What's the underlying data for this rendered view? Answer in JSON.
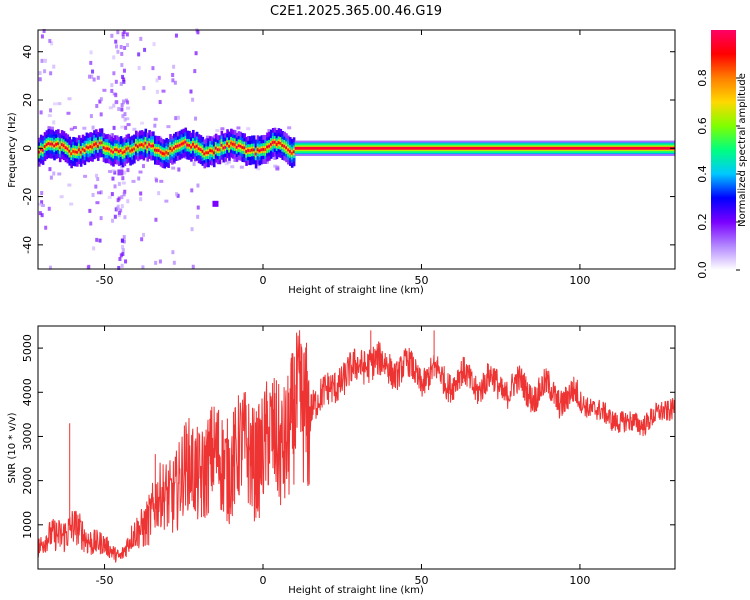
{
  "title": "C2E1.2025.365.00.46.G19",
  "chart_data": [
    {
      "type": "heatmap",
      "xlabel": "Height of straight line (km)",
      "ylabel": "Frequency (Hz)",
      "xlim": [
        -71,
        130
      ],
      "ylim": [
        -50,
        49
      ],
      "xticks": [
        -50,
        0,
        50,
        100
      ],
      "yticks": [
        -40,
        -20,
        0,
        20,
        40
      ],
      "colorbar": {
        "label": "Normalized spectral amplitude",
        "range": [
          0.0,
          1.0
        ],
        "ticks": [
          0.0,
          0.2,
          0.4,
          0.6,
          0.8
        ],
        "colors": [
          "#ffffff",
          "#b388ff",
          "#7a00ff",
          "#0000ff",
          "#00c8ff",
          "#00ff7f",
          "#7fff00",
          "#ffd800",
          "#ff7f00",
          "#ff0000",
          "#ff0066"
        ]
      },
      "ridge": {
        "center_frequency_hz": 0,
        "stable_from_km": 10,
        "band_halfwidth_hz": 2
      },
      "features": [
        {
          "x_km": -15,
          "y_hz": -23,
          "amplitude": 0.2
        },
        {
          "x_km": -45,
          "y_hz": -10,
          "amplitude": 0.15
        }
      ]
    },
    {
      "type": "line",
      "xlabel": "Height of straight line (km)",
      "ylabel": "SNR (10 * v/v)",
      "xlim": [
        -71,
        130
      ],
      "ylim": [
        0,
        5500
      ],
      "xticks": [
        -50,
        0,
        50,
        100
      ],
      "yticks": [
        1000,
        2000,
        3000,
        4000,
        5000
      ],
      "color": "#ee3333",
      "envelope": [
        {
          "x": -71,
          "y": 500
        },
        {
          "x": -65,
          "y": 800
        },
        {
          "x": -60,
          "y": 900
        },
        {
          "x": -55,
          "y": 700
        },
        {
          "x": -50,
          "y": 500
        },
        {
          "x": -45,
          "y": 300
        },
        {
          "x": -40,
          "y": 800
        },
        {
          "x": -35,
          "y": 1300
        },
        {
          "x": -30,
          "y": 1700
        },
        {
          "x": -25,
          "y": 2100
        },
        {
          "x": -20,
          "y": 2300
        },
        {
          "x": -15,
          "y": 2400
        },
        {
          "x": -10,
          "y": 2500
        },
        {
          "x": -5,
          "y": 2600
        },
        {
          "x": 0,
          "y": 2700
        },
        {
          "x": 5,
          "y": 2900
        },
        {
          "x": 10,
          "y": 3300
        },
        {
          "x": 15,
          "y": 3700
        },
        {
          "x": 20,
          "y": 4000
        },
        {
          "x": 25,
          "y": 4300
        },
        {
          "x": 30,
          "y": 4600
        },
        {
          "x": 35,
          "y": 4700
        },
        {
          "x": 40,
          "y": 4600
        },
        {
          "x": 45,
          "y": 4500
        },
        {
          "x": 50,
          "y": 4400
        },
        {
          "x": 60,
          "y": 4300
        },
        {
          "x": 70,
          "y": 4200
        },
        {
          "x": 80,
          "y": 4100
        },
        {
          "x": 90,
          "y": 4000
        },
        {
          "x": 100,
          "y": 3800
        },
        {
          "x": 105,
          "y": 3600
        },
        {
          "x": 110,
          "y": 3400
        },
        {
          "x": 115,
          "y": 3300
        },
        {
          "x": 120,
          "y": 3300
        },
        {
          "x": 125,
          "y": 3500
        },
        {
          "x": 130,
          "y": 3700
        }
      ],
      "spikes": [
        {
          "x": -61,
          "y": 3300
        },
        {
          "x": -34,
          "y": 2600
        },
        {
          "x": -14,
          "y": 3600
        },
        {
          "x": 12,
          "y": 5100
        },
        {
          "x": 34,
          "y": 5400
        },
        {
          "x": 54,
          "y": 5400
        }
      ]
    }
  ]
}
